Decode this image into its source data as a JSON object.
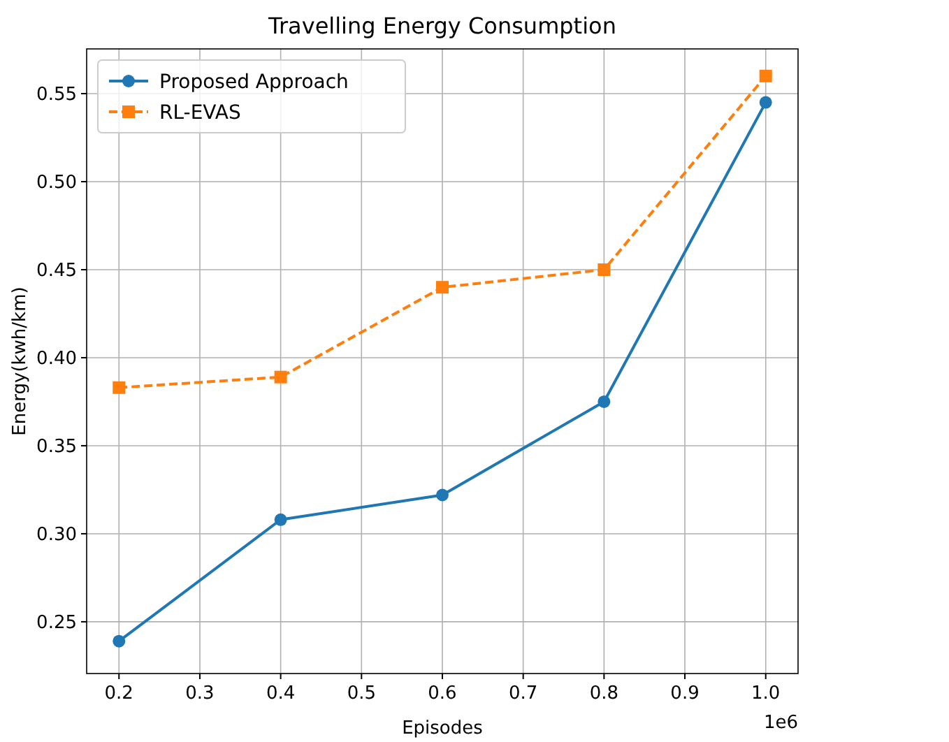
{
  "chart_data": {
    "type": "line",
    "title": "Travelling Energy Consumption",
    "xlabel": "Episodes",
    "ylabel": "Energy(kwh/km)",
    "x": [
      0.2,
      0.4,
      0.6,
      0.8,
      1.0
    ],
    "series": [
      {
        "name": "Proposed Approach",
        "color": "#1f77b4",
        "values": [
          0.239,
          0.308,
          0.322,
          0.375,
          0.545
        ],
        "marker": "circle",
        "line_style": "solid"
      },
      {
        "name": "RL-EVAS",
        "color": "#ff7f0e",
        "values": [
          0.383,
          0.389,
          0.44,
          0.45,
          0.56
        ],
        "marker": "square",
        "line_style": "dashed"
      }
    ],
    "xlim": [
      0.16,
      1.04
    ],
    "xticks": [
      0.2,
      0.3,
      0.4,
      0.5,
      0.6,
      0.7,
      0.8,
      0.9,
      {
        "value": 1,
        "label": "1.0"
      }
    ],
    "ylim": [
      0.2206,
      0.5754
    ],
    "yticks": [
      0.25,
      {
        "value": 0.3,
        "label": "0.30"
      },
      0.35,
      {
        "value": 0.4,
        "label": "0.40"
      },
      0.45,
      {
        "value": 0.5,
        "label": "0.50"
      },
      0.55
    ],
    "annotations": [
      "1e6"
    ],
    "grid": true,
    "legend": "top left"
  }
}
